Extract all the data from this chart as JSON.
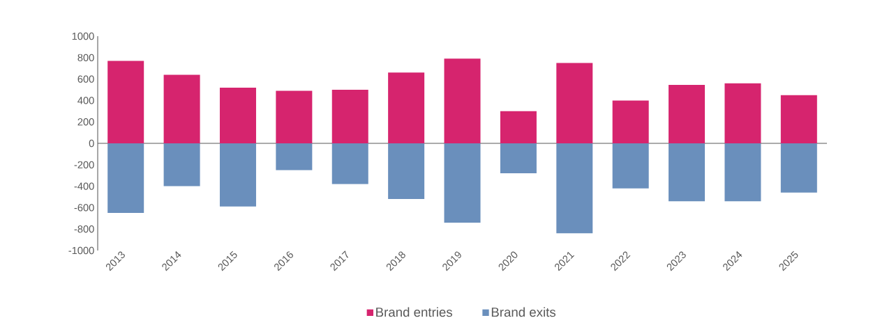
{
  "chart_data": {
    "type": "bar",
    "categories": [
      "2013",
      "2014",
      "2015",
      "2016",
      "2017",
      "2018",
      "2019",
      "2020",
      "2021",
      "2022",
      "2023",
      "2024",
      "2025"
    ],
    "series": [
      {
        "name": "Brand entries",
        "color": "#d6246e",
        "values": [
          770,
          640,
          520,
          490,
          500,
          660,
          790,
          300,
          750,
          400,
          545,
          560,
          450
        ]
      },
      {
        "name": "Brand exits",
        "color": "#6a8fbc",
        "values": [
          -650,
          -400,
          -590,
          -250,
          -380,
          -520,
          -740,
          -280,
          -840,
          -420,
          -540,
          -540,
          -460
        ]
      }
    ],
    "ylim": [
      -1000,
      1000
    ],
    "yticks": [
      -1000,
      -800,
      -600,
      -400,
      -200,
      0,
      200,
      400,
      600,
      800,
      1000
    ],
    "legend": "bottom",
    "stacked": true
  }
}
